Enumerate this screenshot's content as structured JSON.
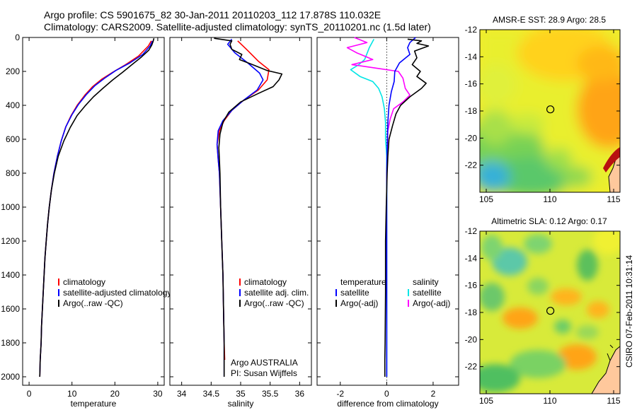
{
  "header": {
    "line1": "Argo profile: CS 5901675_82 30-Jan-2011 20110203_112 17.878S 110.032E",
    "line2": "Climatology: CARS2009. Satellite-adjusted climatology: synTS_20110201.nc (1.5d later)"
  },
  "side_label": "CSIRO 07-Feb-2011 10:31:14",
  "colors": {
    "clim": "#ff0000",
    "sat": "#0000ff",
    "argo": "#000000",
    "sal_sat": "#00e5e5",
    "sal_argo": "#ff00ff"
  },
  "chart_data": [
    {
      "type": "line",
      "id": "temperature",
      "xlabel": "temperature",
      "xlim": [
        -1.5,
        31.5
      ],
      "ylim": [
        2050,
        0
      ],
      "xticks": [
        0,
        10,
        20,
        30
      ],
      "yticks": [
        0,
        200,
        400,
        600,
        800,
        1000,
        1200,
        1400,
        1600,
        1800,
        2000
      ],
      "series": [
        {
          "name": "climatology",
          "color": "#ff0000",
          "points": [
            [
              28.5,
              20
            ],
            [
              27.8,
              50
            ],
            [
              25.5,
              110
            ],
            [
              22.5,
              160
            ],
            [
              19.5,
              205
            ],
            [
              17,
              245
            ],
            [
              14.8,
              290
            ],
            [
              13,
              340
            ],
            [
              11.2,
              400
            ],
            [
              9.8,
              460
            ],
            [
              8.5,
              530
            ],
            [
              7.5,
              610
            ],
            [
              6.6,
              700
            ],
            [
              5.8,
              800
            ],
            [
              5.2,
              900
            ],
            [
              4.7,
              1000
            ],
            [
              4.3,
              1100
            ],
            [
              4,
              1200
            ],
            [
              3.7,
              1300
            ],
            [
              3.5,
              1400
            ],
            [
              3.3,
              1500
            ],
            [
              3.1,
              1600
            ],
            [
              2.9,
              1700
            ],
            [
              2.8,
              1800
            ],
            [
              2.6,
              1900
            ],
            [
              2.5,
              2000
            ]
          ]
        },
        {
          "name": "satellite-adjusted climatology",
          "color": "#0000ff",
          "points": [
            [
              28.8,
              20
            ],
            [
              28.2,
              50
            ],
            [
              26.5,
              100
            ],
            [
              23.5,
              150
            ],
            [
              20.2,
              195
            ],
            [
              17.6,
              240
            ],
            [
              15.3,
              285
            ],
            [
              13.4,
              335
            ],
            [
              11.5,
              395
            ],
            [
              10,
              455
            ],
            [
              8.6,
              525
            ],
            [
              7.5,
              610
            ],
            [
              6.6,
              700
            ],
            [
              5.8,
              800
            ],
            [
              5.2,
              900
            ],
            [
              4.7,
              1000
            ],
            [
              4.3,
              1100
            ],
            [
              4,
              1200
            ],
            [
              3.7,
              1300
            ],
            [
              3.5,
              1400
            ],
            [
              3.3,
              1500
            ],
            [
              3.1,
              1600
            ],
            [
              2.9,
              1700
            ],
            [
              2.8,
              1800
            ],
            [
              2.6,
              1900
            ],
            [
              2.5,
              2000
            ]
          ]
        },
        {
          "name": "Argo(..raw -QC)",
          "color": "#000000",
          "points": [
            [
              29.1,
              5
            ],
            [
              28.9,
              25
            ],
            [
              28.6,
              45
            ],
            [
              27.9,
              75
            ],
            [
              26.2,
              115
            ],
            [
              24,
              160
            ],
            [
              21.8,
              205
            ],
            [
              19.5,
              250
            ],
            [
              17.2,
              300
            ],
            [
              15,
              350
            ],
            [
              13,
              405
            ],
            [
              11.2,
              460
            ],
            [
              9.6,
              530
            ],
            [
              8.1,
              610
            ],
            [
              6.8,
              700
            ],
            [
              5.9,
              800
            ],
            [
              5.2,
              900
            ],
            [
              4.7,
              1000
            ],
            [
              4.3,
              1100
            ],
            [
              4,
              1200
            ],
            [
              3.7,
              1300
            ],
            [
              3.5,
              1400
            ],
            [
              3.3,
              1500
            ],
            [
              3.1,
              1600
            ],
            [
              2.9,
              1700
            ],
            [
              2.8,
              1800
            ],
            [
              2.6,
              1900
            ],
            [
              2.5,
              2000
            ]
          ]
        }
      ],
      "legend": {
        "position": "lower-right",
        "entries": [
          "climatology",
          "satellite-adjusted climatology",
          "Argo(..raw -QC)"
        ]
      }
    },
    {
      "type": "line",
      "id": "salinity",
      "xlabel": "salinity",
      "xlim": [
        33.8,
        36.2
      ],
      "ylim": [
        2050,
        0
      ],
      "xticks": [
        34,
        34.5,
        35,
        35.5,
        36
      ],
      "xticklabels": [
        "34",
        "34.5",
        "35",
        "35.5",
        "36"
      ],
      "series": [
        {
          "name": "climatology",
          "color": "#ff0000",
          "points": [
            [
              34.95,
              20
            ],
            [
              35.1,
              70
            ],
            [
              35.3,
              140
            ],
            [
              35.48,
              190
            ],
            [
              35.45,
              250
            ],
            [
              35.3,
              310
            ],
            [
              35.05,
              370
            ],
            [
              34.85,
              430
            ],
            [
              34.72,
              490
            ],
            [
              34.64,
              550
            ],
            [
              34.6,
              630
            ],
            [
              34.62,
              720
            ],
            [
              34.64,
              800
            ],
            [
              34.66,
              1000
            ],
            [
              34.68,
              1200
            ],
            [
              34.7,
              1400
            ],
            [
              34.71,
              1600
            ],
            [
              34.72,
              1800
            ],
            [
              34.73,
              1900
            ]
          ]
        },
        {
          "name": "satellite adj. clim.",
          "color": "#0000ff",
          "points": [
            [
              34.85,
              10
            ],
            [
              34.78,
              40
            ],
            [
              34.9,
              90
            ],
            [
              35.12,
              150
            ],
            [
              35.32,
              210
            ],
            [
              35.38,
              250
            ],
            [
              35.28,
              310
            ],
            [
              35.05,
              370
            ],
            [
              34.85,
              430
            ],
            [
              34.7,
              490
            ],
            [
              34.62,
              550
            ],
            [
              34.6,
              630
            ],
            [
              34.62,
              720
            ],
            [
              34.64,
              800
            ],
            [
              34.66,
              1000
            ],
            [
              34.68,
              1200
            ],
            [
              34.7,
              1400
            ],
            [
              34.71,
              1600
            ],
            [
              34.72,
              1800
            ],
            [
              34.72,
              2000
            ]
          ]
        },
        {
          "name": "Argo(..raw -QC)",
          "color": "#000000",
          "points": [
            [
              34.55,
              5
            ],
            [
              34.85,
              20
            ],
            [
              34.82,
              40
            ],
            [
              34.85,
              70
            ],
            [
              35.02,
              100
            ],
            [
              34.98,
              130
            ],
            [
              35.2,
              160
            ],
            [
              35.45,
              195
            ],
            [
              35.7,
              215
            ],
            [
              35.65,
              250
            ],
            [
              35.55,
              290
            ],
            [
              35.3,
              330
            ],
            [
              35,
              380
            ],
            [
              34.8,
              440
            ],
            [
              34.7,
              500
            ],
            [
              34.65,
              570
            ],
            [
              34.63,
              650
            ],
            [
              34.64,
              720
            ],
            [
              34.65,
              800
            ],
            [
              34.66,
              1000
            ],
            [
              34.68,
              1200
            ],
            [
              34.7,
              1400
            ],
            [
              34.71,
              1600
            ],
            [
              34.72,
              1800
            ],
            [
              34.72,
              2000
            ]
          ]
        }
      ],
      "legend": {
        "position": "lower-right",
        "entries": [
          "climatology",
          "satellite adj. clim.",
          "Argo(..raw -QC)"
        ]
      },
      "annotations": [
        "Argo AUSTRALIA",
        "PI: Susan Wijffels"
      ]
    },
    {
      "type": "line",
      "id": "difference",
      "xlabel": "difference from climatology",
      "xlim": [
        -3,
        3.1
      ],
      "ylim": [
        2050,
        0
      ],
      "xticks": [
        -2,
        0,
        2
      ],
      "zero_line": "dotted",
      "series": [
        {
          "name": "temperature satellite",
          "color": "#0000ff",
          "points": [
            [
              1.25,
              0
            ],
            [
              1.0,
              30
            ],
            [
              0.9,
              60
            ],
            [
              1.0,
              100
            ],
            [
              0.55,
              150
            ],
            [
              0.35,
              200
            ],
            [
              0.32,
              260
            ],
            [
              0.2,
              320
            ],
            [
              0.1,
              400
            ],
            [
              0.05,
              500
            ],
            [
              0.02,
              650
            ],
            [
              0,
              800
            ],
            [
              0,
              1000
            ],
            [
              0,
              1500
            ],
            [
              0,
              2000
            ]
          ]
        },
        {
          "name": "temperature Argo(-adj)",
          "color": "#000000",
          "points": [
            [
              0.9,
              10
            ],
            [
              1.5,
              20
            ],
            [
              1.3,
              35
            ],
            [
              1.8,
              50
            ],
            [
              1.5,
              65
            ],
            [
              1.2,
              80
            ],
            [
              1.3,
              120
            ],
            [
              1.1,
              160
            ],
            [
              1.45,
              200
            ],
            [
              1.3,
              230
            ],
            [
              1.7,
              270
            ],
            [
              1.5,
              300
            ],
            [
              1.0,
              350
            ],
            [
              0.6,
              400
            ],
            [
              0.4,
              450
            ],
            [
              0.25,
              520
            ],
            [
              0.1,
              600
            ],
            [
              0.05,
              700
            ],
            [
              0.02,
              800
            ],
            [
              -0.02,
              1000
            ],
            [
              -0.05,
              1200
            ],
            [
              -0.05,
              1500
            ],
            [
              -0.07,
              1800
            ],
            [
              -0.08,
              1900
            ],
            [
              -0.08,
              2000
            ]
          ]
        },
        {
          "name": "salinity satellite",
          "color": "#00e5e5",
          "points": [
            [
              -0.55,
              10
            ],
            [
              -0.75,
              60
            ],
            [
              -0.95,
              130
            ],
            [
              -1.2,
              160
            ],
            [
              -1.55,
              190
            ],
            [
              -1.15,
              230
            ],
            [
              -0.6,
              260
            ],
            [
              -0.35,
              300
            ],
            [
              -0.2,
              350
            ],
            [
              -0.1,
              420
            ],
            [
              -0.05,
              500
            ],
            [
              -0.05,
              600
            ],
            [
              0,
              700
            ],
            [
              0,
              900
            ],
            [
              0,
              1200
            ],
            [
              0,
              1500
            ],
            [
              0,
              1800
            ],
            [
              0,
              2000
            ]
          ]
        },
        {
          "name": "salinity Argo(-adj)",
          "color": "#ff00ff",
          "points": [
            [
              -1.4,
              0
            ],
            [
              -0.85,
              30
            ],
            [
              -1.7,
              60
            ],
            [
              -1.3,
              90
            ],
            [
              -0.6,
              130
            ],
            [
              -1.5,
              160
            ],
            [
              -0.5,
              180
            ],
            [
              0.5,
              200
            ],
            [
              0.7,
              240
            ],
            [
              0.8,
              300
            ],
            [
              1.0,
              340
            ],
            [
              0.7,
              380
            ],
            [
              0.3,
              420
            ],
            [
              0.15,
              480
            ],
            [
              0.05,
              550
            ],
            [
              0.02,
              700
            ],
            [
              0,
              850
            ]
          ]
        }
      ],
      "legend": {
        "position": "lower",
        "entries": [
          "temperature",
          "satellite",
          "Argo(-adj)",
          "salinity",
          "satellite",
          "Argo(-adj)"
        ]
      }
    },
    {
      "type": "heatmap",
      "id": "sst_map",
      "title": "AMSR-E SST: 28.9 Argo: 28.5",
      "xlim": [
        104.5,
        115.5
      ],
      "ylim": [
        -24,
        -12
      ],
      "xticks": [
        105,
        110,
        115
      ],
      "yticks": [
        -12,
        -14,
        -16,
        -18,
        -20,
        -22
      ],
      "marker": [
        110.032,
        -17.878
      ],
      "colormap": "jet"
    },
    {
      "type": "heatmap",
      "id": "sla_map",
      "title": "Altimetric SLA: 0.12 Argo: 0.17",
      "xlim": [
        104.5,
        115.5
      ],
      "ylim": [
        -24,
        -12
      ],
      "xticks": [
        105,
        110,
        115
      ],
      "yticks": [
        -12,
        -14,
        -16,
        -18,
        -20,
        -22
      ],
      "marker": [
        110.032,
        -17.878
      ],
      "colormap": "jet"
    }
  ]
}
